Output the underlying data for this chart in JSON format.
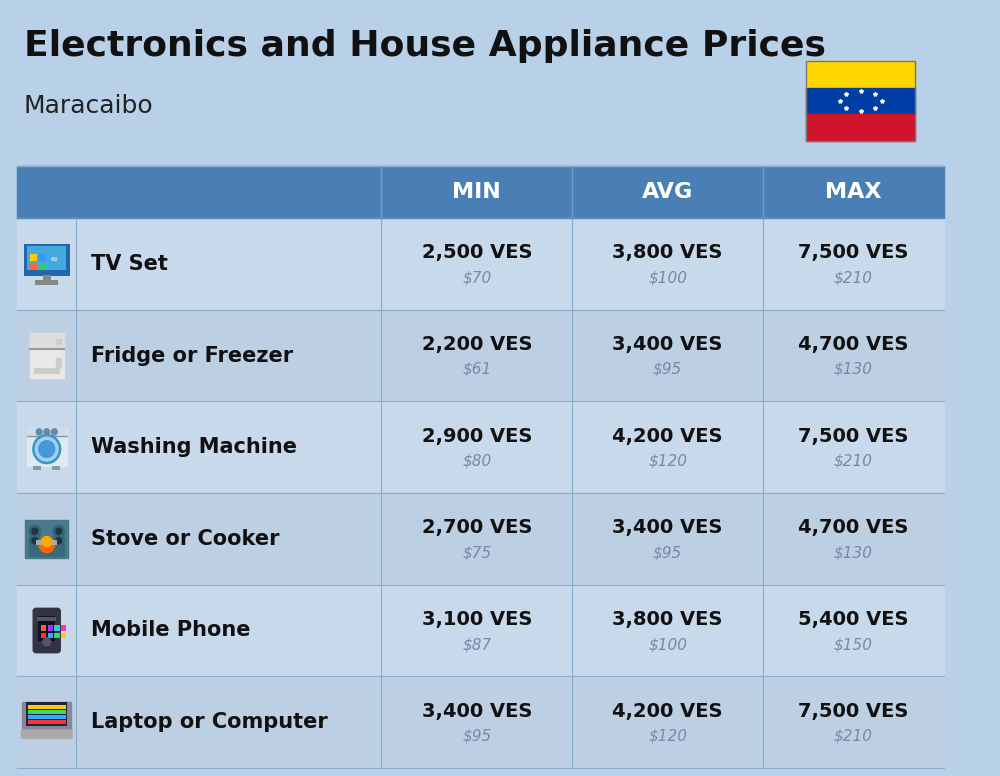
{
  "title": "Electronics and House Appliance Prices",
  "subtitle": "Maracaibo",
  "background_color": "#b8d0e8",
  "header_color": "#4a7fb5",
  "header_text_color": "#ffffff",
  "row_color_odd": "#c8d9eb",
  "row_color_even": "#bccfe3",
  "item_label_color": "#111111",
  "ves_color": "#111111",
  "usd_color": "#7788aa",
  "col_sep_color": "#8aaecc",
  "columns": [
    "MIN",
    "AVG",
    "MAX"
  ],
  "rows": [
    {
      "name": "TV Set",
      "min_ves": "2,500 VES",
      "min_usd": "$70",
      "avg_ves": "3,800 VES",
      "avg_usd": "$100",
      "max_ves": "7,500 VES",
      "max_usd": "$210"
    },
    {
      "name": "Fridge or Freezer",
      "min_ves": "2,200 VES",
      "min_usd": "$61",
      "avg_ves": "3,400 VES",
      "avg_usd": "$95",
      "max_ves": "4,700 VES",
      "max_usd": "$130"
    },
    {
      "name": "Washing Machine",
      "min_ves": "2,900 VES",
      "min_usd": "$80",
      "avg_ves": "4,200 VES",
      "avg_usd": "$120",
      "max_ves": "7,500 VES",
      "max_usd": "$210"
    },
    {
      "name": "Stove or Cooker",
      "min_ves": "2,700 VES",
      "min_usd": "$75",
      "avg_ves": "3,400 VES",
      "avg_usd": "$95",
      "max_ves": "4,700 VES",
      "max_usd": "$130"
    },
    {
      "name": "Mobile Phone",
      "min_ves": "3,100 VES",
      "min_usd": "$87",
      "avg_ves": "3,800 VES",
      "avg_usd": "$100",
      "max_ves": "5,400 VES",
      "max_usd": "$150"
    },
    {
      "name": "Laptop or Computer",
      "min_ves": "3,400 VES",
      "min_usd": "$95",
      "avg_ves": "4,200 VES",
      "avg_usd": "$120",
      "max_ves": "7,500 VES",
      "max_usd": "$210"
    }
  ],
  "flag_yellow": "#FFD700",
  "flag_blue": "#003DA5",
  "flag_red": "#CF142B"
}
